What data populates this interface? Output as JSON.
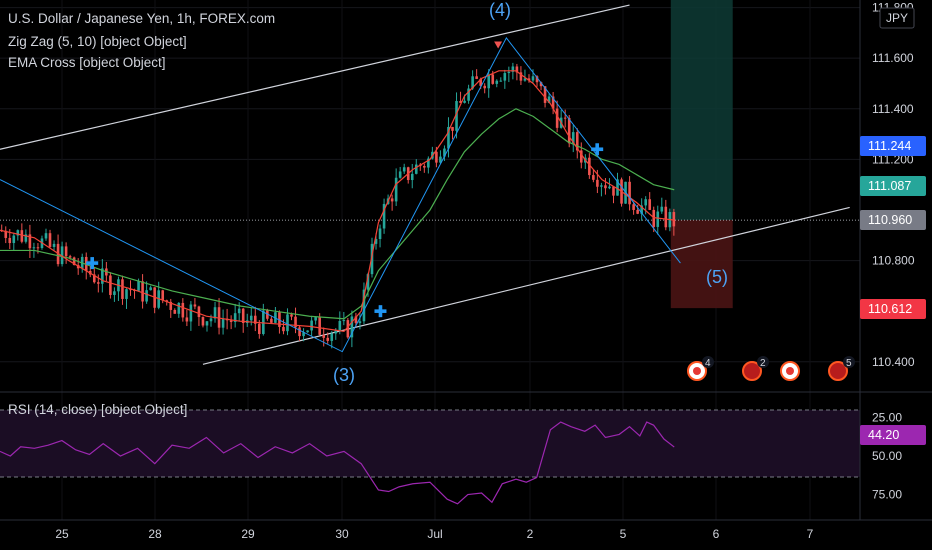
{
  "title": "U.S. Dollar / Japanese Yen, 1h, FOREX.com",
  "indicators": [
    "Zig Zag (5, 10) [object Object]",
    "EMA Cross [object Object]"
  ],
  "rsi_label": "RSI (14, close) [object Object]",
  "currency": "JPY",
  "price_tags": [
    {
      "value": "111.244",
      "color": "#2962ff"
    },
    {
      "value": "111.087",
      "color": "#26a69a"
    },
    {
      "value": "110.960",
      "color": "#787b86"
    },
    {
      "value": "110.612",
      "color": "#f23645"
    },
    {
      "value": "44.20",
      "color": "#9c27b0"
    }
  ],
  "colors": {
    "up": "#26a69a",
    "down": "#ef5350",
    "ema_fast": "#f44336",
    "ema_slow": "#4caf50",
    "zigzag": "#2196f3",
    "rsi": "#9c27b0",
    "trendline": "#d1d4dc"
  },
  "chart_data": [
    {
      "type": "candlestick",
      "x_ticks": [
        "25",
        "28",
        "29",
        "30",
        "Jul",
        "2",
        "5",
        "6",
        "7"
      ],
      "y_ticks": [
        111.8,
        111.6,
        111.4,
        111.2,
        110.8,
        110.4
      ],
      "ylim": [
        110.32,
        111.83
      ],
      "wave_labels": [
        "(3)",
        "(4)",
        "(5)"
      ],
      "zigzag": [
        {
          "x": 0,
          "y": 111.12
        },
        {
          "x": 9.95,
          "y": 110.44
        },
        {
          "x": 14.72,
          "y": 111.68
        },
        {
          "x": 19.78,
          "y": 110.79
        }
      ],
      "ema_fast": [
        [
          0,
          110.92
        ],
        [
          1,
          110.89
        ],
        [
          2,
          110.8
        ],
        [
          3,
          110.72
        ],
        [
          4,
          110.68
        ],
        [
          5,
          110.63
        ],
        [
          6,
          110.58
        ],
        [
          7,
          110.56
        ],
        [
          8,
          110.55
        ],
        [
          9,
          110.54
        ],
        [
          10,
          110.52
        ],
        [
          10.5,
          110.6
        ],
        [
          11,
          110.95
        ],
        [
          11.5,
          111.1
        ],
        [
          12,
          111.16
        ],
        [
          12.5,
          111.2
        ],
        [
          13,
          111.3
        ],
        [
          13.5,
          111.45
        ],
        [
          14,
          111.52
        ],
        [
          14.5,
          111.55
        ],
        [
          15,
          111.55
        ],
        [
          15.5,
          111.5
        ],
        [
          16,
          111.42
        ],
        [
          16.5,
          111.3
        ],
        [
          17,
          111.2
        ],
        [
          17.5,
          111.12
        ],
        [
          18,
          111.08
        ],
        [
          18.5,
          111.03
        ],
        [
          19,
          110.97
        ],
        [
          19.6,
          110.96
        ]
      ],
      "ema_slow": [
        [
          0,
          110.84
        ],
        [
          1,
          110.84
        ],
        [
          2,
          110.81
        ],
        [
          3,
          110.76
        ],
        [
          4,
          110.72
        ],
        [
          5,
          110.68
        ],
        [
          6,
          110.65
        ],
        [
          7,
          110.62
        ],
        [
          8,
          110.6
        ],
        [
          9,
          110.58
        ],
        [
          10,
          110.57
        ],
        [
          10.5,
          110.62
        ],
        [
          11,
          110.76
        ],
        [
          11.5,
          110.84
        ],
        [
          12,
          110.92
        ],
        [
          12.5,
          111.0
        ],
        [
          13,
          111.12
        ],
        [
          13.5,
          111.23
        ],
        [
          14,
          111.3
        ],
        [
          14.5,
          111.36
        ],
        [
          15,
          111.4
        ],
        [
          15.5,
          111.37
        ],
        [
          16,
          111.32
        ],
        [
          16.5,
          111.27
        ],
        [
          17,
          111.24
        ],
        [
          17.5,
          111.2
        ],
        [
          18,
          111.18
        ],
        [
          18.5,
          111.14
        ],
        [
          19,
          111.1
        ],
        [
          19.6,
          111.08
        ]
      ],
      "channel": {
        "upper": [
          {
            "x": 0,
            "y": 111.24
          },
          {
            "x": 18.3,
            "y": 111.81
          }
        ],
        "lower": [
          {
            "x": 5.9,
            "y": 110.39
          },
          {
            "x": 24.7,
            "y": 111.01
          }
        ],
        "mid": [
          {
            "x": 0,
            "y": 110.96
          },
          {
            "x": 24.7,
            "y": 110.96
          }
        ]
      },
      "position": {
        "x_start": 19.5,
        "x_end": 21.3,
        "entry": 110.96,
        "target": 111.83,
        "stop": 110.612
      },
      "signals": [
        {
          "x": 2.68,
          "y": 110.79,
          "kind": "buy"
        },
        {
          "x": 11.06,
          "y": 110.6,
          "kind": "buy"
        },
        {
          "x": 17.36,
          "y": 111.24,
          "kind": "buy"
        },
        {
          "x": 14.48,
          "y": 111.65,
          "kind": "sell"
        }
      ]
    },
    {
      "type": "line",
      "title": "RSI (14, close)",
      "y_ticks": [
        25.0,
        50.0,
        75.0
      ],
      "ylim": [
        15,
        85
      ],
      "bands": [
        30,
        70
      ],
      "values": [
        [
          0,
          47
        ],
        [
          0.3,
          50
        ],
        [
          0.6,
          44
        ],
        [
          1,
          45
        ],
        [
          1.4,
          43
        ],
        [
          1.8,
          40
        ],
        [
          2.2,
          46
        ],
        [
          2.6,
          49
        ],
        [
          3,
          42
        ],
        [
          3.5,
          50
        ],
        [
          4,
          45
        ],
        [
          4.5,
          55
        ],
        [
          5,
          43
        ],
        [
          5.5,
          45
        ],
        [
          6,
          38
        ],
        [
          6.5,
          48
        ],
        [
          7,
          42
        ],
        [
          7.5,
          51
        ],
        [
          8,
          44
        ],
        [
          8.5,
          48
        ],
        [
          9,
          42
        ],
        [
          9.5,
          50
        ],
        [
          10,
          47
        ],
        [
          10.5,
          55
        ],
        [
          11,
          72
        ],
        [
          11.3,
          73
        ],
        [
          11.6,
          70
        ],
        [
          12,
          68
        ],
        [
          12.5,
          67
        ],
        [
          13,
          78
        ],
        [
          13.3,
          81
        ],
        [
          13.6,
          75
        ],
        [
          14,
          74
        ],
        [
          14.3,
          80
        ],
        [
          14.6,
          68
        ],
        [
          15,
          65
        ],
        [
          15.3,
          67
        ],
        [
          15.6,
          64
        ],
        [
          16,
          33
        ],
        [
          16.3,
          28
        ],
        [
          16.6,
          31
        ],
        [
          17,
          34
        ],
        [
          17.3,
          30
        ],
        [
          17.6,
          38
        ],
        [
          18,
          36
        ],
        [
          18.3,
          31
        ],
        [
          18.6,
          37
        ],
        [
          18.8,
          28
        ],
        [
          19,
          30
        ],
        [
          19.3,
          39
        ],
        [
          19.6,
          44.2
        ]
      ]
    }
  ]
}
